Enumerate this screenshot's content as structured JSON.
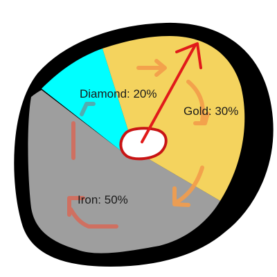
{
  "slices": [
    {
      "label": "Diamond: 20%",
      "name": "Diamond",
      "value": 20,
      "color": "#00ffff"
    },
    {
      "label": "Gold: 30%",
      "name": "Gold",
      "value": 30,
      "color": "#f4d35e"
    },
    {
      "label": "Iron: 50%",
      "name": "Iron",
      "value": 50,
      "color": "#9e9e9e"
    }
  ],
  "colors": {
    "outline": "#000000",
    "pointer": "#e11a1a",
    "hub_fill": "#ffffff",
    "hub_stroke": "#c81414",
    "arrow_orange": "#f39c4a",
    "arrow_red": "#d46a5a",
    "arrow_teal": "#5aa3a8"
  },
  "icons": [
    "spinner-pointer-arrow",
    "rotation-arrow"
  ]
}
